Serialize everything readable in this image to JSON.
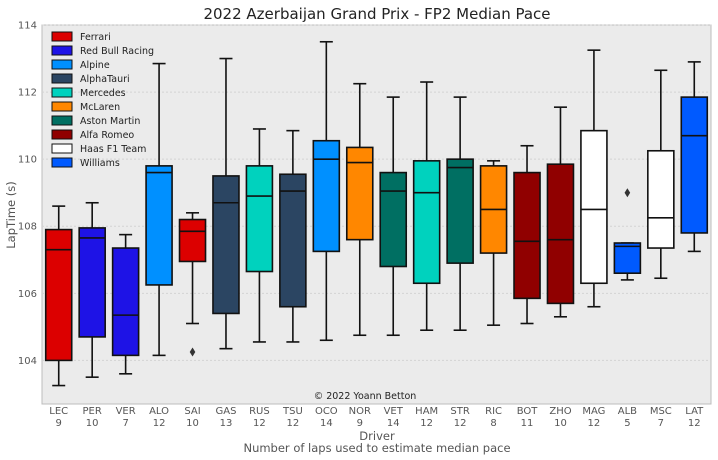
{
  "chart_data": {
    "type": "box",
    "title": "2022 Azerbaijan Grand Prix - FP2 Median Pace",
    "xlabel": "Driver",
    "xlabel2": "Number of laps used to estimate median pace",
    "ylabel": "LapTime (s)",
    "ylim": [
      102.7,
      114
    ],
    "yticks": [
      104,
      106,
      108,
      110,
      112,
      114
    ],
    "grid": true,
    "legend_position": "top-left",
    "annotation": "© 2022 Yoann Betton",
    "legend": [
      {
        "name": "Ferrari",
        "color": "#dc0000"
      },
      {
        "name": "Red Bull Racing",
        "color": "#1e13e6"
      },
      {
        "name": "Alpine",
        "color": "#0090ff"
      },
      {
        "name": "AlphaTauri",
        "color": "#2b4562"
      },
      {
        "name": "Mercedes",
        "color": "#00d2be"
      },
      {
        "name": "McLaren",
        "color": "#ff8700"
      },
      {
        "name": "Aston Martin",
        "color": "#006f62"
      },
      {
        "name": "Alfa Romeo",
        "color": "#900000"
      },
      {
        "name": "Haas F1 Team",
        "color": "#ffffff"
      },
      {
        "name": "Williams",
        "color": "#005aff"
      }
    ],
    "boxes": [
      {
        "driver": "LEC",
        "laps": "9",
        "team": "Ferrari",
        "min": 103.25,
        "q1": 104.0,
        "median": 107.3,
        "q3": 107.9,
        "max": 108.6,
        "outliers": []
      },
      {
        "driver": "PER",
        "laps": "10",
        "team": "Red Bull Racing",
        "min": 103.5,
        "q1": 104.7,
        "median": 107.65,
        "q3": 107.95,
        "max": 108.7,
        "outliers": []
      },
      {
        "driver": "VER",
        "laps": "7",
        "team": "Red Bull Racing",
        "min": 103.6,
        "q1": 104.15,
        "median": 105.35,
        "q3": 107.35,
        "max": 107.75,
        "outliers": []
      },
      {
        "driver": "ALO",
        "laps": "12",
        "team": "Alpine",
        "min": 104.15,
        "q1": 106.25,
        "median": 109.6,
        "q3": 109.8,
        "max": 112.85,
        "outliers": []
      },
      {
        "driver": "SAI",
        "laps": "10",
        "team": "Ferrari",
        "min": 105.1,
        "q1": 106.95,
        "median": 107.85,
        "q3": 108.2,
        "max": 108.4,
        "outliers": [
          104.25
        ]
      },
      {
        "driver": "GAS",
        "laps": "13",
        "team": "AlphaTauri",
        "min": 104.35,
        "q1": 105.4,
        "median": 108.7,
        "q3": 109.5,
        "max": 113.0,
        "outliers": []
      },
      {
        "driver": "RUS",
        "laps": "12",
        "team": "Mercedes",
        "min": 104.55,
        "q1": 106.65,
        "median": 108.9,
        "q3": 109.8,
        "max": 110.9,
        "outliers": []
      },
      {
        "driver": "TSU",
        "laps": "12",
        "team": "AlphaTauri",
        "min": 104.55,
        "q1": 105.6,
        "median": 109.05,
        "q3": 109.55,
        "max": 110.85,
        "outliers": []
      },
      {
        "driver": "OCO",
        "laps": "14",
        "team": "Alpine",
        "min": 104.6,
        "q1": 107.25,
        "median": 110.0,
        "q3": 110.55,
        "max": 113.5,
        "outliers": []
      },
      {
        "driver": "NOR",
        "laps": "9",
        "team": "McLaren",
        "min": 104.75,
        "q1": 107.6,
        "median": 109.9,
        "q3": 110.35,
        "max": 112.25,
        "outliers": []
      },
      {
        "driver": "VET",
        "laps": "14",
        "team": "Aston Martin",
        "min": 104.75,
        "q1": 106.8,
        "median": 109.05,
        "q3": 109.6,
        "max": 111.85,
        "outliers": []
      },
      {
        "driver": "HAM",
        "laps": "12",
        "team": "Mercedes",
        "min": 104.9,
        "q1": 106.3,
        "median": 109.0,
        "q3": 109.95,
        "max": 112.3,
        "outliers": []
      },
      {
        "driver": "STR",
        "laps": "12",
        "team": "Aston Martin",
        "min": 104.9,
        "q1": 106.9,
        "median": 109.75,
        "q3": 110.0,
        "max": 111.85,
        "outliers": []
      },
      {
        "driver": "RIC",
        "laps": "8",
        "team": "McLaren",
        "min": 105.05,
        "q1": 107.2,
        "median": 108.5,
        "q3": 109.8,
        "max": 109.95,
        "outliers": []
      },
      {
        "driver": "BOT",
        "laps": "11",
        "team": "Alfa Romeo",
        "min": 105.1,
        "q1": 105.85,
        "median": 107.55,
        "q3": 109.6,
        "max": 110.4,
        "outliers": []
      },
      {
        "driver": "ZHO",
        "laps": "10",
        "team": "Alfa Romeo",
        "min": 105.3,
        "q1": 105.7,
        "median": 107.6,
        "q3": 109.85,
        "max": 111.55,
        "outliers": []
      },
      {
        "driver": "MAG",
        "laps": "12",
        "team": "Haas F1 Team",
        "min": 105.6,
        "q1": 106.3,
        "median": 108.5,
        "q3": 110.85,
        "max": 113.25,
        "outliers": []
      },
      {
        "driver": "ALB",
        "laps": "5",
        "team": "Williams",
        "min": 106.4,
        "q1": 106.6,
        "median": 107.4,
        "q3": 107.5,
        "max": 107.5,
        "outliers": [
          109.0
        ]
      },
      {
        "driver": "MSC",
        "laps": "7",
        "team": "Haas F1 Team",
        "min": 106.45,
        "q1": 107.35,
        "median": 108.25,
        "q3": 110.25,
        "max": 112.65,
        "outliers": []
      },
      {
        "driver": "LAT",
        "laps": "12",
        "team": "Williams",
        "min": 107.25,
        "q1": 107.8,
        "median": 110.7,
        "q3": 111.85,
        "max": 112.9,
        "outliers": []
      }
    ]
  }
}
